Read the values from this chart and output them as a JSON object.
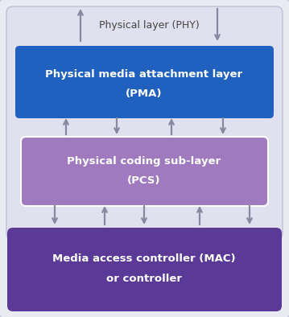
{
  "bg_outer_color": "#eaeaf2",
  "bg_inner_color": "#e0e0ee",
  "pma_color": "#2060be",
  "pcs_color": "#a07abe",
  "mac_color": "#5a3a96",
  "text_color_white": "#ffffff",
  "text_color_dark": "#444444",
  "arrow_color": "#8888a0",
  "phy_label": "Physical layer (PHY)",
  "pma_line1": "Physical media attachment layer",
  "pma_line2": "(PMA)",
  "pcs_line1": "Physical coding sub-layer",
  "pcs_line2": "(PCS)",
  "mac_line1": "Media access controller (MAC)",
  "mac_line2": "or controller",
  "fig_width": 3.59,
  "fig_height": 3.94,
  "dpi": 100
}
